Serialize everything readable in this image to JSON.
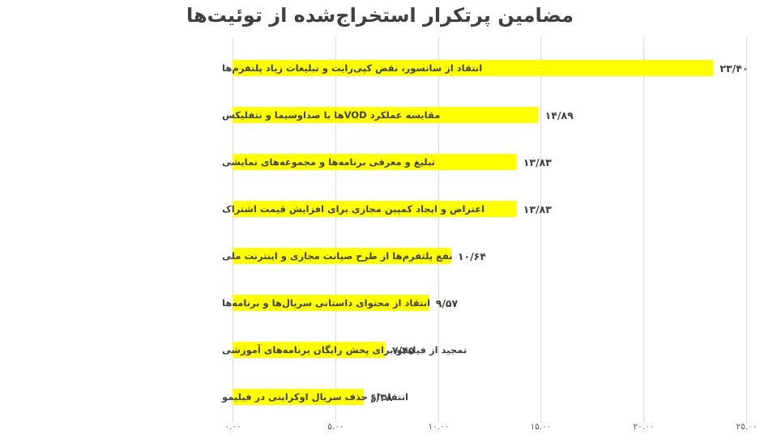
{
  "chart_data": {
    "type": "bar",
    "orientation": "horizontal",
    "title": "مضامین پرتکرار استخراج‌شده از توئیت‌ها",
    "categories": [
      "انتقاد از سانسور، نقض کپی‌رایت و تبلیغات زیاد پلتفرم‌ها",
      "مقایسه عملکرد VODها با صداوسیما و نتفلیکس",
      "تبلیغ و معرفی برنامه‌ها و مجموعه‌های نمایشی",
      "اعتراض و ایجاد کمپین مجازی برای افزایش قیمت اشتراک",
      "نفع پلتفرم‌ها از طرح صیانت مجازی و اینترنت ملی",
      "انتقاد از محتوای داستانی سریال‌ها و برنامه‌ها",
      "تمجید از فیلیمو برای پخش رایگان برنامه‌های آموزشی",
      "انتقاد از حذف سریال اوکراینی در فیلیمو"
    ],
    "values": [
      23.4,
      14.89,
      13.83,
      13.83,
      10.64,
      9.57,
      7.45,
      6.38
    ],
    "value_labels": [
      "۲۳/۴۰",
      "۱۴/۸۹",
      "۱۳/۸۳",
      "۱۳/۸۳",
      "۱۰/۶۴",
      "۹/۵۷",
      "۷/۴۵",
      "۶/۳۸"
    ],
    "xlim": [
      0,
      25
    ],
    "xticks": [
      0,
      5,
      10,
      15,
      20,
      25
    ],
    "xtick_labels": [
      "۰.۰۰",
      "۵.۰۰",
      "۱۰.۰۰",
      "۱۵.۰۰",
      "۲۰.۰۰",
      "۲۵.۰۰"
    ],
    "grid": true,
    "bar_color": "#ffff00",
    "text_color": "#404040",
    "grid_color": "#d9d9d9"
  }
}
